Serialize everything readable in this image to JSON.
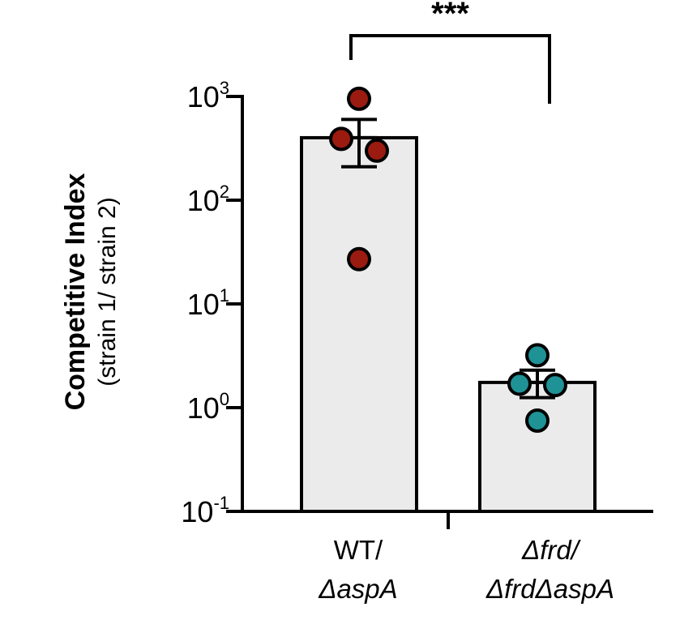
{
  "chart_data": {
    "type": "bar",
    "scale": "log10",
    "ylabel": "Competitive Index",
    "ylabel_sub": "(strain 1/ strain 2)",
    "ylim": [
      0.1,
      1000
    ],
    "yticks": [
      {
        "base": "10",
        "exp": "3",
        "value": 1000
      },
      {
        "base": "10",
        "exp": "2",
        "value": 100
      },
      {
        "base": "10",
        "exp": "1",
        "value": 10
      },
      {
        "base": "10",
        "exp": "0",
        "value": 1
      },
      {
        "base": "10",
        "exp": "-1",
        "value": 0.1
      }
    ],
    "categories": [
      {
        "line1": "WT/",
        "line1_italic": false,
        "line2": "ΔaspA",
        "line2_italic": true
      },
      {
        "line1": "Δfrd/",
        "line1_italic": true,
        "line2": "ΔfrdΔaspA",
        "line2_italic": true
      }
    ],
    "series": [
      {
        "name": "WT/ΔaspA",
        "mean": 400,
        "sem_low": 210,
        "sem_high": 600,
        "points": [
          950,
          390,
          300,
          27
        ],
        "bar_color": "#ebebeb",
        "point_color": "#9b1b10"
      },
      {
        "name": "Δfrd/ΔfrdΔaspA",
        "mean": 1.75,
        "sem_low": 1.25,
        "sem_high": 2.3,
        "points": [
          3.2,
          1.7,
          1.65,
          0.75
        ],
        "bar_color": "#ebebeb",
        "point_color": "#1f9296"
      }
    ],
    "significance": {
      "label": "***",
      "between": [
        0,
        1
      ]
    }
  }
}
